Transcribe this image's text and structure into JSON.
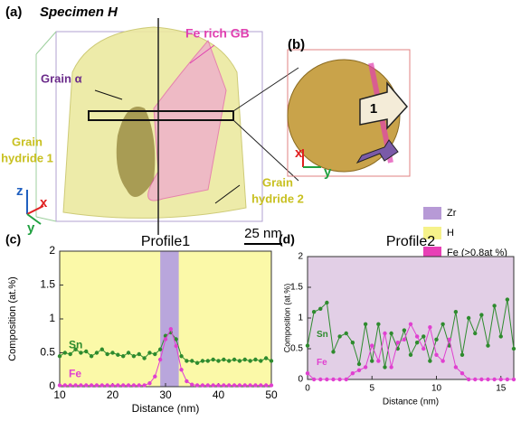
{
  "figure": {
    "label_a": "(a)",
    "specimen": "Specimen H",
    "fe_rich_gb": "Fe rich GB",
    "grain_alpha": "Grain α",
    "grain_hydride_1": [
      "Grain",
      "hydride 1"
    ],
    "grain_hydride_2": [
      "Grain",
      "hydride 2"
    ],
    "label_b": "(b)",
    "arrow_label": "1",
    "scale_bar": "25 nm",
    "axes_a": {
      "z": "z",
      "x": "x",
      "y": "y"
    },
    "axes_b": {
      "x": "x",
      "y": "y"
    },
    "label_c": "(c)",
    "label_d": "(d)",
    "legend": [
      {
        "name": "Zr",
        "color": "#b79ad6"
      },
      {
        "name": "H",
        "color": "#f6f28a"
      },
      {
        "name": "Fe (>0.8at %)",
        "color": "#e83fb6"
      }
    ]
  },
  "chart_data": [
    {
      "type": "line",
      "title": "Profile1",
      "x_label": "Distance (nm)",
      "y_label": "Composition (at.%)",
      "background": "#fbf9a8",
      "highlight": {
        "xrange": [
          29,
          32.5
        ],
        "color": "#b9a6dc"
      },
      "x": [
        10,
        11,
        12,
        13,
        14,
        15,
        16,
        17,
        18,
        19,
        20,
        21,
        22,
        23,
        24,
        25,
        26,
        27,
        28,
        29,
        30,
        31,
        32,
        33,
        34,
        35,
        36,
        37,
        38,
        39,
        40,
        41,
        42,
        43,
        44,
        45,
        46,
        47,
        48,
        49,
        50
      ],
      "series": [
        {
          "name": "Sn",
          "color": "#2e8b2e",
          "values": [
            0.45,
            0.5,
            0.48,
            0.55,
            0.5,
            0.52,
            0.45,
            0.5,
            0.55,
            0.48,
            0.5,
            0.47,
            0.45,
            0.5,
            0.45,
            0.48,
            0.42,
            0.5,
            0.48,
            0.55,
            0.75,
            0.8,
            0.7,
            0.45,
            0.38,
            0.38,
            0.35,
            0.38,
            0.38,
            0.4,
            0.38,
            0.4,
            0.38,
            0.4,
            0.38,
            0.4,
            0.38,
            0.4,
            0.38,
            0.42,
            0.38
          ]
        },
        {
          "name": "Fe",
          "color": "#e040d0",
          "values": [
            0.02,
            0.02,
            0.02,
            0.02,
            0.02,
            0.02,
            0.02,
            0.02,
            0.02,
            0.02,
            0.02,
            0.02,
            0.02,
            0.02,
            0.02,
            0.02,
            0.02,
            0.05,
            0.15,
            0.4,
            0.7,
            0.85,
            0.6,
            0.25,
            0.08,
            0.03,
            0.02,
            0.02,
            0.02,
            0.02,
            0.02,
            0.02,
            0.02,
            0.02,
            0.02,
            0.02,
            0.02,
            0.02,
            0.02,
            0.02,
            0.02
          ]
        }
      ],
      "xlim": [
        10,
        50
      ],
      "xticks": [
        10,
        20,
        30,
        40,
        50
      ],
      "ylim": [
        0,
        2
      ],
      "yticks": [
        0,
        0.5,
        1,
        1.5,
        2
      ]
    },
    {
      "type": "line",
      "title": "Profile2",
      "x_label": "Distance (nm)",
      "y_label": "Composition (at.%)",
      "background": "#e2cfe6",
      "x": [
        0,
        0.5,
        1,
        1.5,
        2,
        2.5,
        3,
        3.5,
        4,
        4.5,
        5,
        5.5,
        6,
        6.5,
        7,
        7.5,
        8,
        8.5,
        9,
        9.5,
        10,
        10.5,
        11,
        11.5,
        12,
        12.5,
        13,
        13.5,
        14,
        14.5,
        15,
        15.5,
        16
      ],
      "series": [
        {
          "name": "Sn",
          "color": "#2e8b2e",
          "values": [
            0.55,
            1.1,
            1.15,
            1.25,
            0.45,
            0.7,
            0.75,
            0.6,
            0.25,
            0.9,
            0.3,
            0.9,
            0.2,
            0.75,
            0.5,
            0.8,
            0.4,
            0.6,
            0.7,
            0.3,
            0.65,
            0.9,
            0.55,
            1.1,
            0.4,
            1.0,
            0.75,
            1.05,
            0.55,
            1.2,
            0.7,
            1.3,
            0.5
          ]
        },
        {
          "name": "Fe",
          "color": "#e040d0",
          "values": [
            0.1,
            0,
            0,
            0,
            0,
            0,
            0,
            0.1,
            0.15,
            0.2,
            0.55,
            0.3,
            0.75,
            0.2,
            0.6,
            0.65,
            0.9,
            0.7,
            0.5,
            0.85,
            0.4,
            0.3,
            0.65,
            0.2,
            0.1,
            0,
            0,
            0,
            0,
            0,
            0,
            0,
            0
          ]
        }
      ],
      "xlim": [
        0,
        16
      ],
      "xticks": [
        0,
        5,
        10,
        15
      ],
      "ylim": [
        0,
        2
      ],
      "yticks": [
        0,
        0.5,
        1,
        1.5,
        2
      ]
    }
  ]
}
